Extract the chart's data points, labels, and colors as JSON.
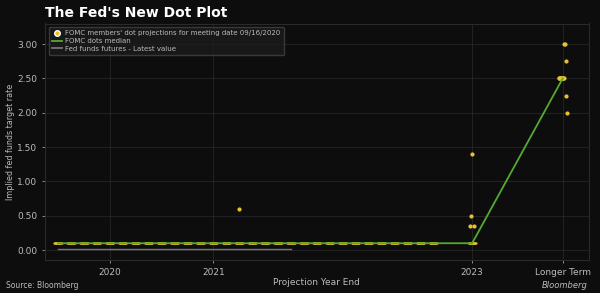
{
  "title": "The Fed's New Dot Plot",
  "xlabel": "Projection Year End",
  "ylabel": "Implied fed funds target rate",
  "background_color": "#0d0d0d",
  "text_color": "#bbbbbb",
  "grid_color": "#2a2a2a",
  "dot_color": "#e8c030",
  "median_color": "#55aa33",
  "futures_color": "#777777",
  "legend_labels": [
    "FOMC members' dot projections for meeting date 09/16/2020",
    "FOMC dots median",
    "Fed funds futures - Latest value"
  ],
  "ylim": [
    -0.15,
    3.3
  ],
  "yticks": [
    0.0,
    0.5,
    1.0,
    1.5,
    2.0,
    2.5,
    3.0
  ],
  "ytick_labels": [
    "0.00",
    "0.50",
    "1.00",
    "1.50",
    "2.00",
    "2.50",
    "3.00"
  ],
  "source_text": "Source: Bloomberg",
  "bloomberg_text": "Bloomberg"
}
